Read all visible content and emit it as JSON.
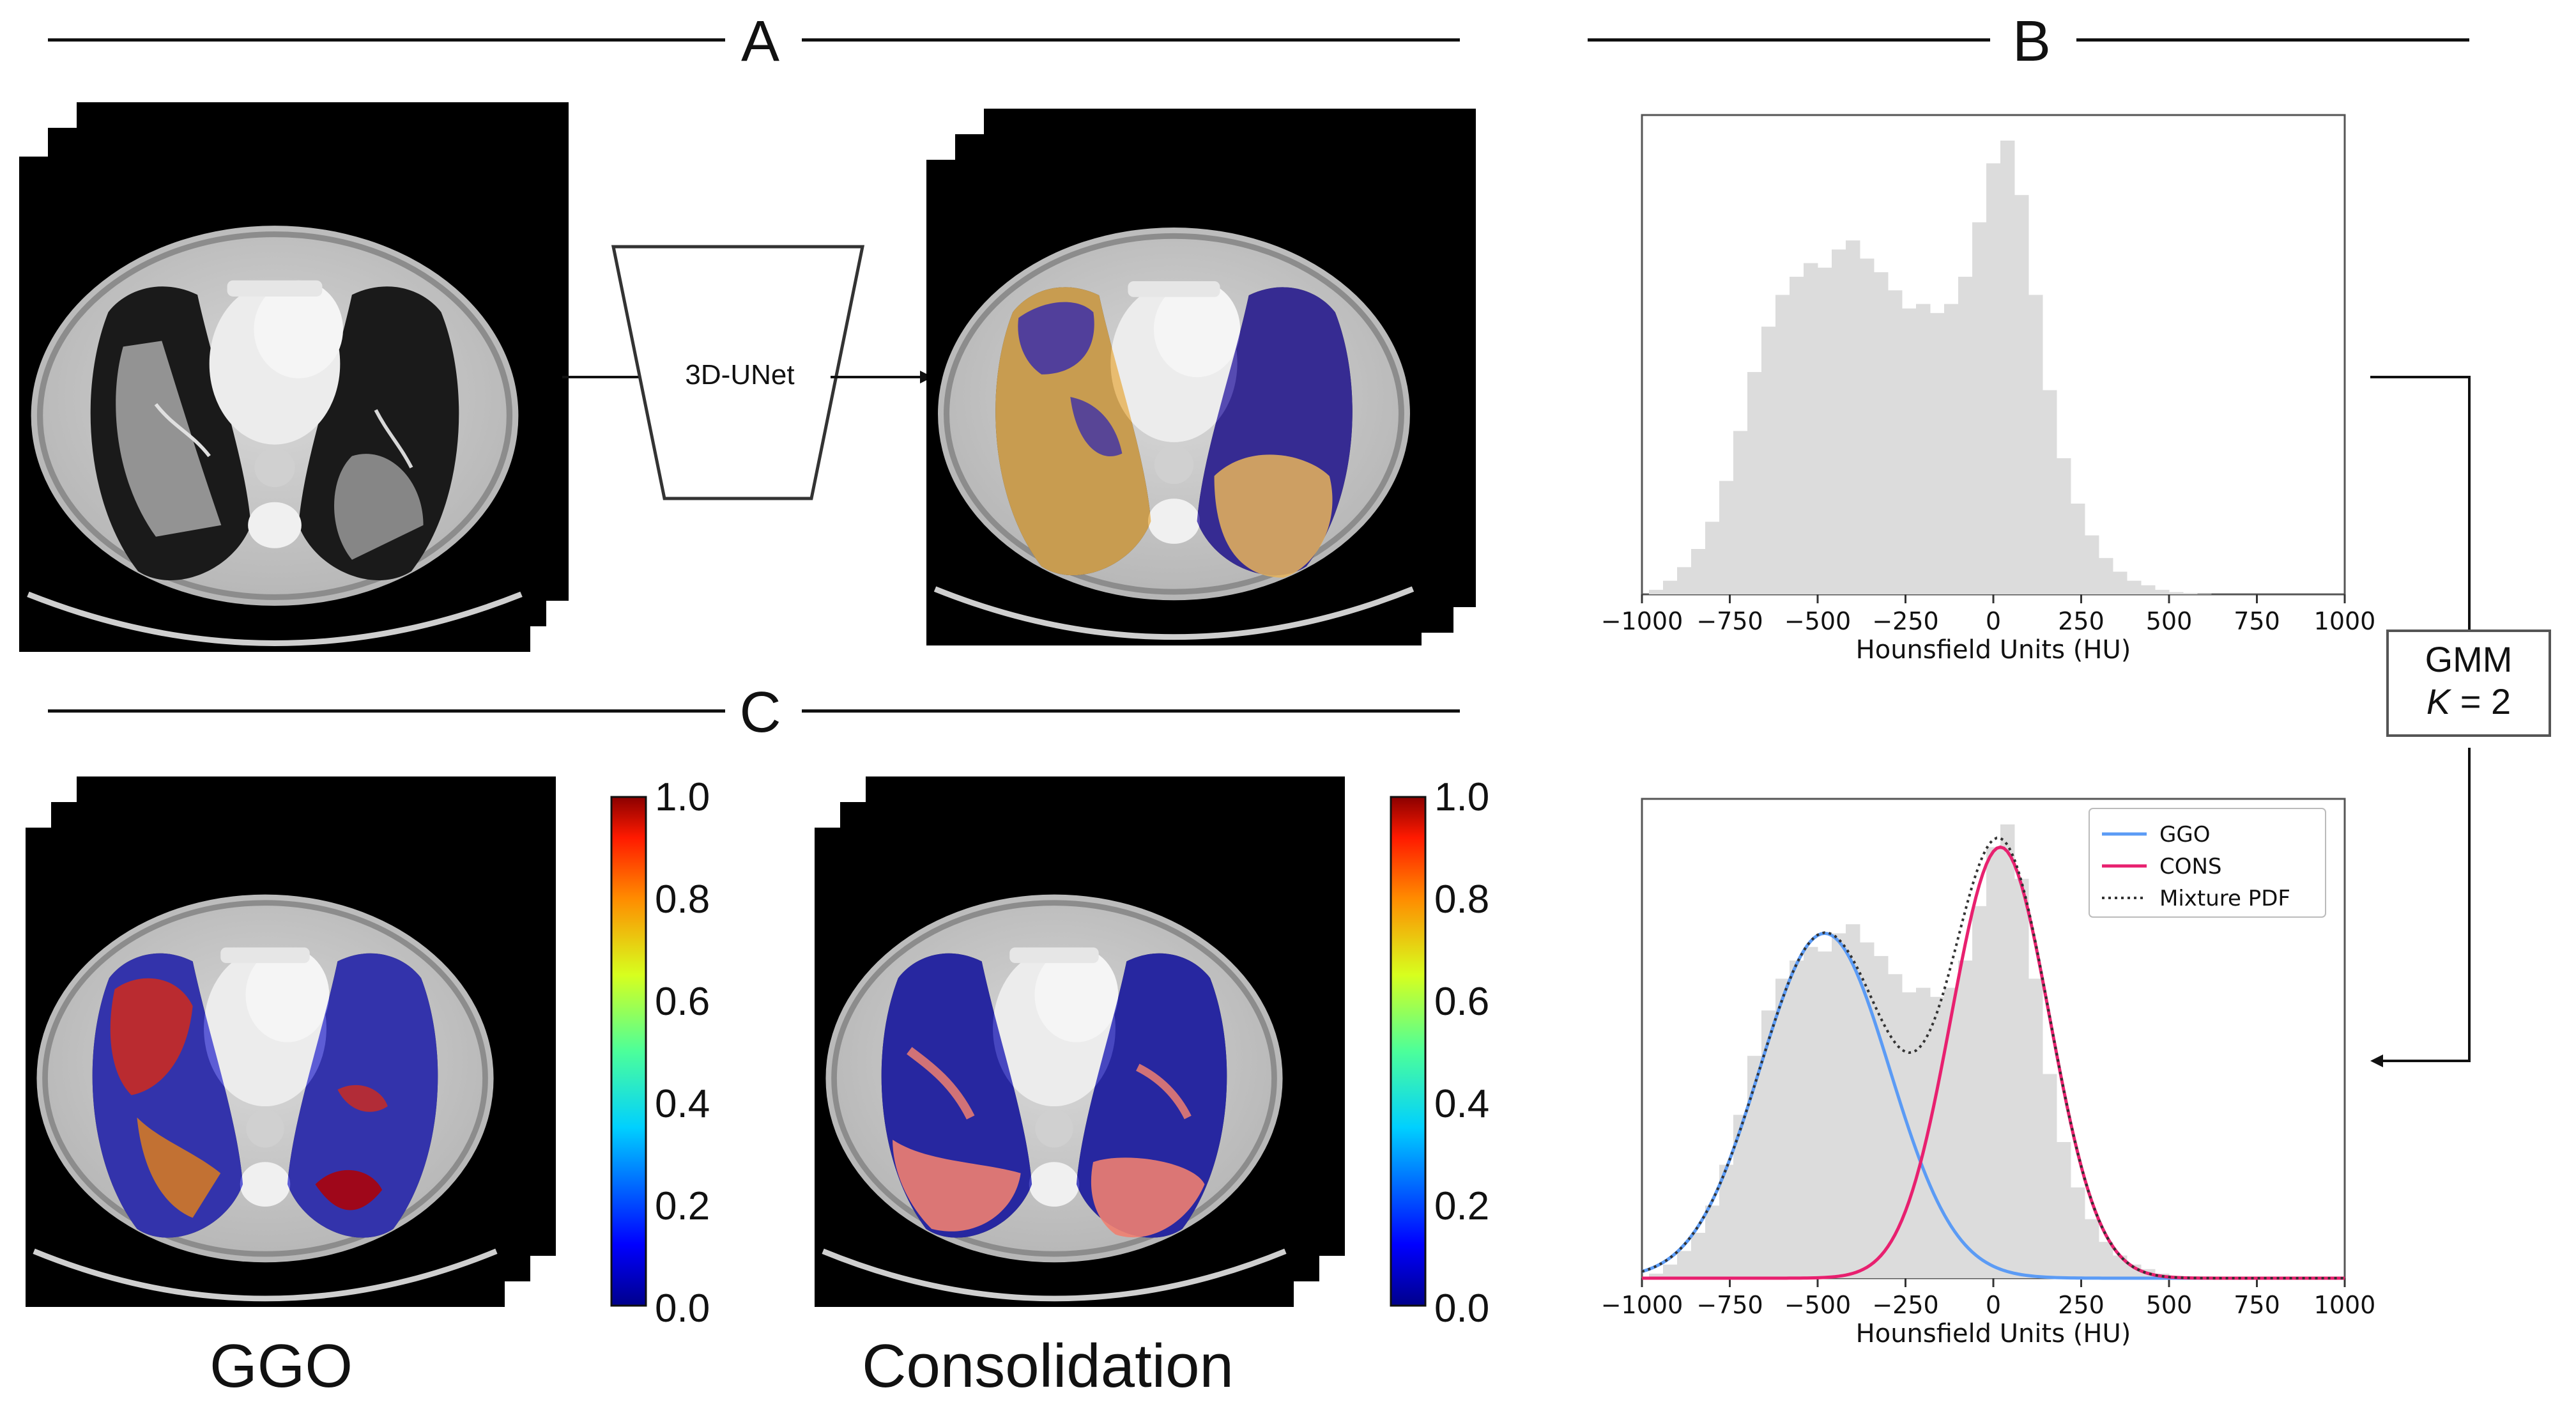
{
  "panels": {
    "a": "A",
    "b": "B",
    "c": "C"
  },
  "model_label": "3D-UNet",
  "gmm": {
    "line1": "GMM",
    "k_symbol": "K",
    "k_value": " = 2"
  },
  "colorbar_ticks": [
    "1.0",
    "0.8",
    "0.6",
    "0.4",
    "0.2",
    "0.0"
  ],
  "bottom_labels": {
    "ggo": "GGO",
    "consolidation": "Consolidation"
  },
  "colors": {
    "ggo_line": "#5b9bf5",
    "cons_line": "#e8206f",
    "mixture_line": "#333333",
    "hist_fill": "#dcdcdc",
    "overlay_cons": "#e8b45a",
    "overlay_ggo": "#3c2fa8"
  },
  "chart_data": [
    {
      "type": "bar",
      "xlabel": "Hounsfield Units (HU)",
      "ylabel": "",
      "xticks": [
        "−1000",
        "−750",
        "−500",
        "−250",
        "0",
        "250",
        "500",
        "750",
        "1000"
      ],
      "xlim": [
        -1000,
        1000
      ],
      "ylim": [
        0,
        1.0
      ],
      "bins": [
        -960,
        -920,
        -880,
        -840,
        -800,
        -760,
        -720,
        -680,
        -640,
        -600,
        -560,
        -520,
        -480,
        -440,
        -400,
        -360,
        -320,
        -280,
        -240,
        -200,
        -160,
        -120,
        -80,
        -40,
        0,
        40,
        80,
        120,
        160,
        200,
        240,
        280,
        320,
        360,
        400,
        440,
        480,
        520,
        560,
        600
      ],
      "values": [
        0.01,
        0.03,
        0.06,
        0.1,
        0.16,
        0.25,
        0.36,
        0.49,
        0.59,
        0.66,
        0.7,
        0.73,
        0.72,
        0.76,
        0.78,
        0.74,
        0.71,
        0.67,
        0.63,
        0.64,
        0.62,
        0.64,
        0.7,
        0.82,
        0.95,
        1.0,
        0.88,
        0.66,
        0.45,
        0.3,
        0.2,
        0.13,
        0.08,
        0.05,
        0.03,
        0.02,
        0.01,
        0.005,
        0.003,
        0.001
      ]
    },
    {
      "type": "line",
      "xlabel": "Hounsfield Units (HU)",
      "ylabel": "",
      "xticks": [
        "−1000",
        "−750",
        "−500",
        "−250",
        "0",
        "250",
        "500",
        "750",
        "1000"
      ],
      "xlim": [
        -1000,
        1000
      ],
      "ylim": [
        0,
        1.0
      ],
      "legend": "top-right",
      "bins": [
        -960,
        -920,
        -880,
        -840,
        -800,
        -760,
        -720,
        -680,
        -640,
        -600,
        -560,
        -520,
        -480,
        -440,
        -400,
        -360,
        -320,
        -280,
        -240,
        -200,
        -160,
        -120,
        -80,
        -40,
        0,
        40,
        80,
        120,
        160,
        200,
        240,
        280,
        320,
        360,
        400,
        440,
        480,
        520,
        560,
        600
      ],
      "values": [
        0.01,
        0.03,
        0.06,
        0.1,
        0.16,
        0.25,
        0.36,
        0.49,
        0.59,
        0.66,
        0.7,
        0.73,
        0.72,
        0.76,
        0.78,
        0.74,
        0.71,
        0.67,
        0.63,
        0.64,
        0.62,
        0.64,
        0.7,
        0.82,
        0.95,
        1.0,
        0.88,
        0.66,
        0.45,
        0.3,
        0.2,
        0.13,
        0.08,
        0.05,
        0.03,
        0.02,
        0.01,
        0.005,
        0.003,
        0.001
      ],
      "series": [
        {
          "name": "GGO",
          "mean": -480,
          "sd": 185,
          "peak": 0.76
        },
        {
          "name": "CONS",
          "mean": 20,
          "sd": 140,
          "peak": 0.95
        },
        {
          "name": "Mixture PDF"
        }
      ]
    }
  ]
}
